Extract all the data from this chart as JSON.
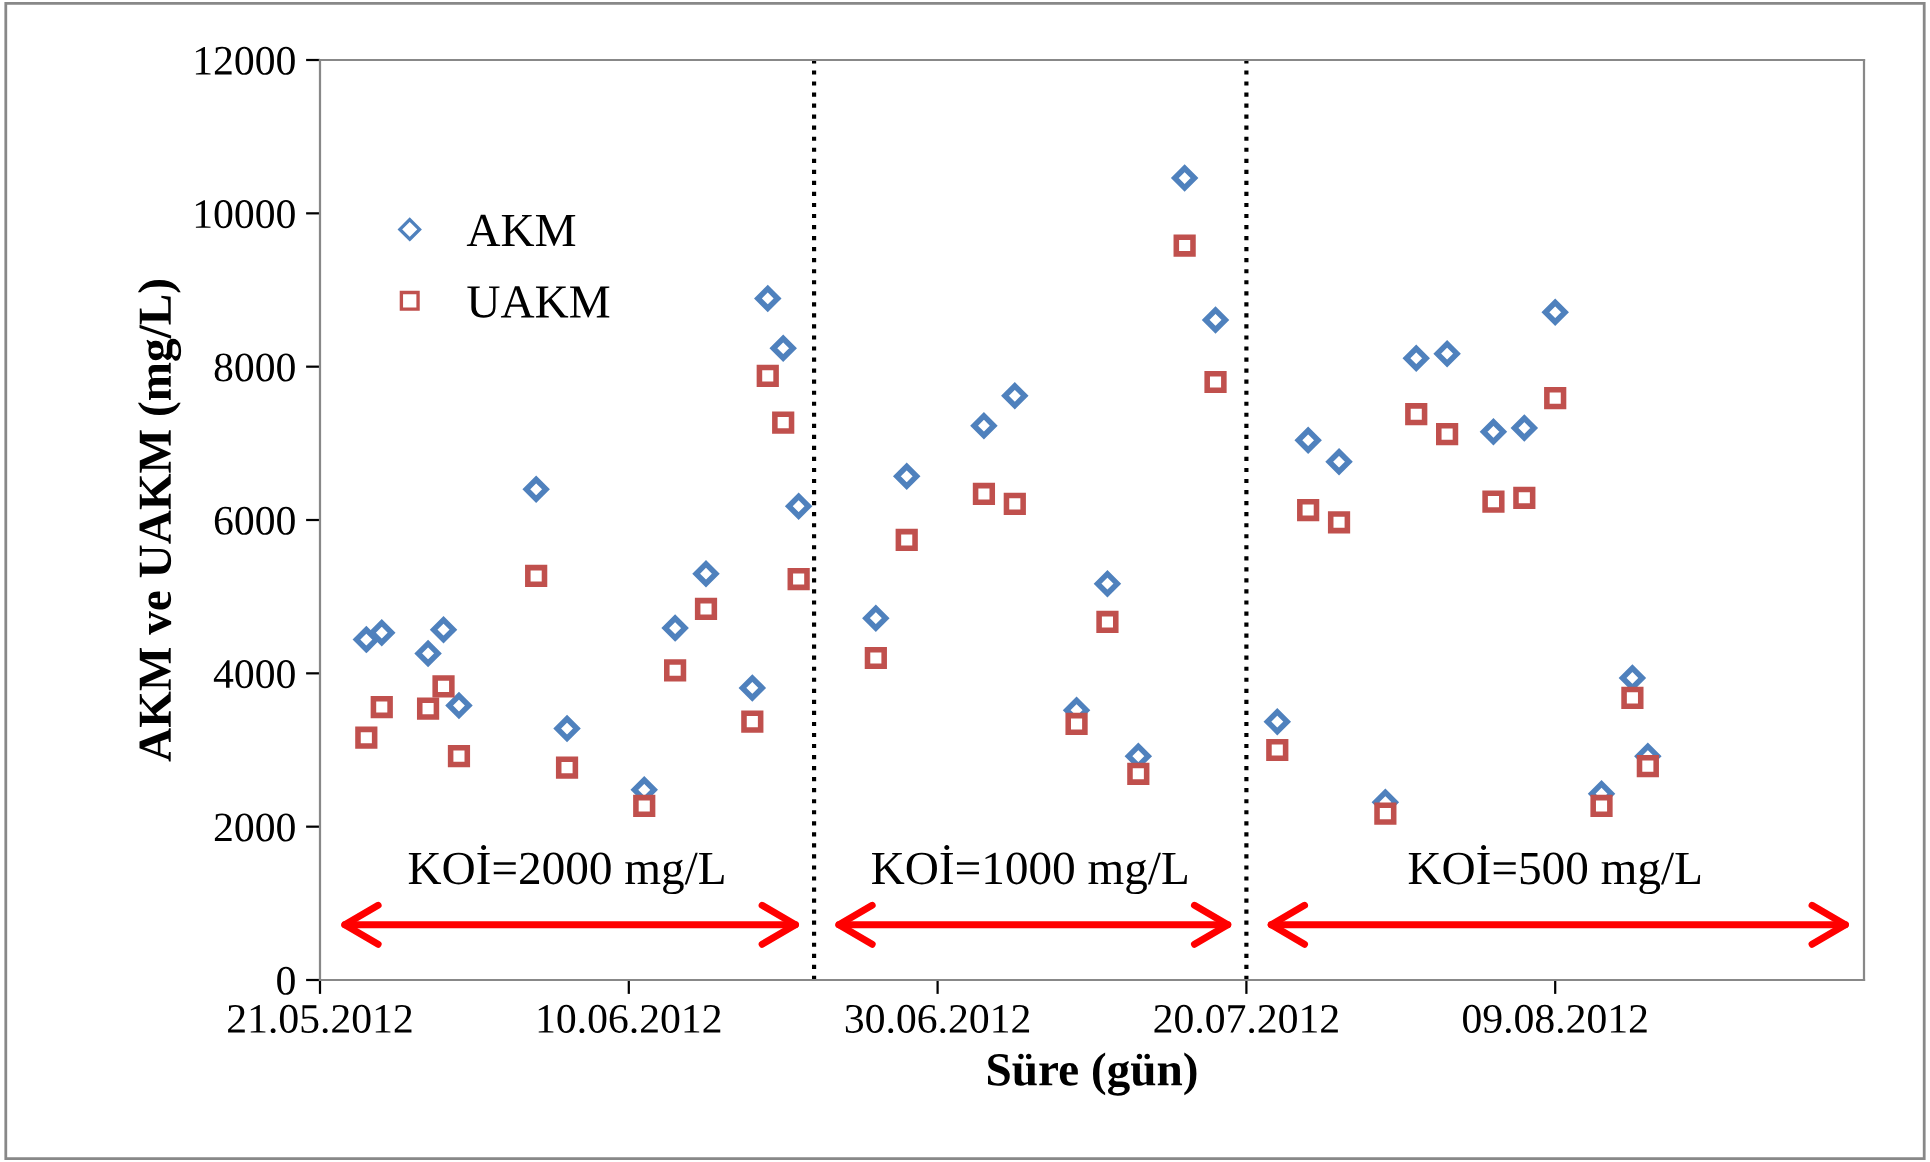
{
  "chart_data": {
    "type": "scatter",
    "xlabel": "Süre (gün)",
    "ylabel": "AKM ve UAKM (mg/L)",
    "x": [
      "2012-05-24",
      "2012-05-25",
      "2012-05-28",
      "2012-05-29",
      "2012-05-30",
      "2012-06-04",
      "2012-06-06",
      "2012-06-11",
      "2012-06-13",
      "2012-06-15",
      "2012-06-18",
      "2012-06-19",
      "2012-06-20",
      "2012-06-21",
      "2012-06-26",
      "2012-06-28",
      "2012-07-03",
      "2012-07-05",
      "2012-07-09",
      "2012-07-11",
      "2012-07-13",
      "2012-07-16",
      "2012-07-18",
      "2012-07-22",
      "2012-07-24",
      "2012-07-26",
      "2012-07-29",
      "2012-07-31",
      "2012-08-02",
      "2012-08-05",
      "2012-08-07",
      "2012-08-09",
      "2012-08-12",
      "2012-08-14",
      "2012-08-15"
    ],
    "series": [
      {
        "name": "AKM",
        "color": "#4f81bd",
        "marker": "diamond",
        "values": [
          4440,
          4530,
          4260,
          4570,
          3580,
          6400,
          3280,
          2480,
          4590,
          5300,
          3810,
          8890,
          8240,
          6180,
          4720,
          6570,
          7230,
          7620,
          3520,
          5170,
          2920,
          10460,
          8610,
          3370,
          7040,
          6760,
          2320,
          8110,
          8170,
          7150,
          7200,
          8710,
          2430,
          3940,
          2920
        ]
      },
      {
        "name": "UAKM",
        "color": "#c0504d",
        "marker": "square",
        "values": [
          3160,
          3560,
          3540,
          3830,
          2920,
          5270,
          2770,
          2270,
          4040,
          4840,
          3370,
          7880,
          7270,
          5230,
          4200,
          5740,
          6340,
          6210,
          3340,
          4670,
          2690,
          9580,
          7800,
          3000,
          6130,
          5970,
          2170,
          7380,
          7120,
          6240,
          6290,
          7590,
          2270,
          3680,
          2790
        ]
      }
    ],
    "xlim": [
      "2012-05-21",
      "2012-08-29"
    ],
    "xticks": [
      {
        "value": "2012-05-21",
        "label": "21.05.2012"
      },
      {
        "value": "2012-06-10",
        "label": "10.06.2012"
      },
      {
        "value": "2012-06-30",
        "label": "30.06.2012"
      },
      {
        "value": "2012-07-20",
        "label": "20.07.2012"
      },
      {
        "value": "2012-08-09",
        "label": "09.08.2012"
      }
    ],
    "ylim": [
      0,
      12000
    ],
    "yticks": [
      0,
      2000,
      4000,
      6000,
      8000,
      10000,
      12000
    ],
    "ref_lines": [
      {
        "axis": "x",
        "value": "2012-06-22",
        "color": "#000000",
        "line_style": "dotted"
      },
      {
        "axis": "x",
        "value": "2012-07-20",
        "color": "#000000",
        "line_style": "dotted"
      }
    ],
    "annotations": [
      "KOİ=2000 mg/L",
      "KOİ=1000 mg/L",
      "KOİ=500 mg/L"
    ],
    "grid": false,
    "legend": "top left"
  }
}
